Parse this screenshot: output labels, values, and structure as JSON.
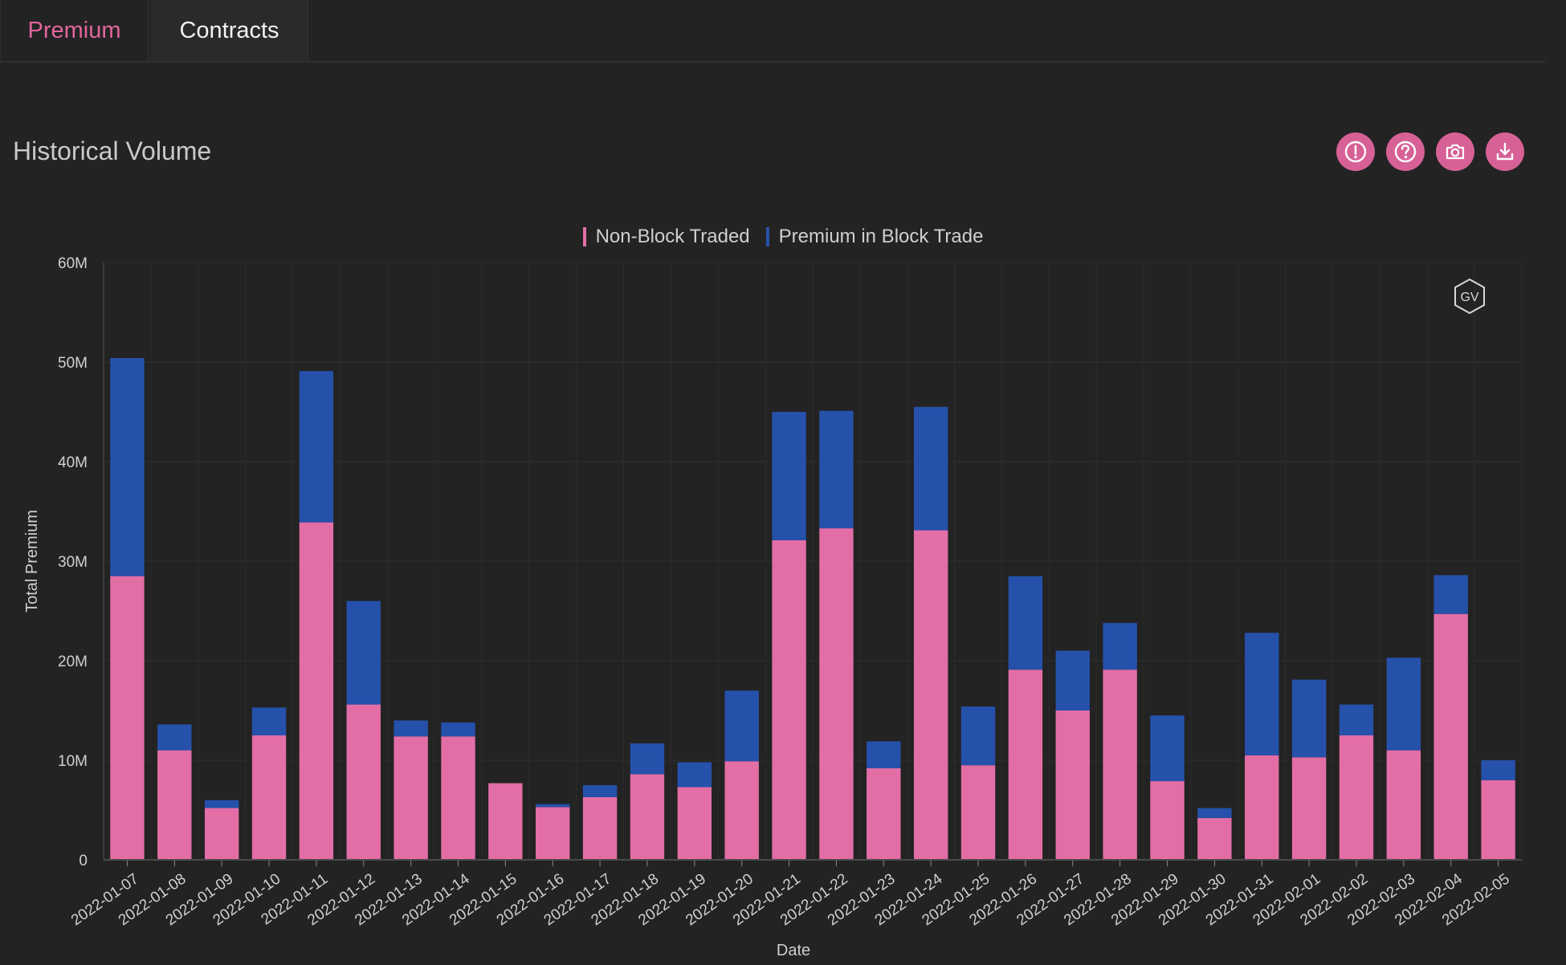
{
  "tabs": [
    {
      "label": "Premium",
      "active": true
    },
    {
      "label": "Contracts",
      "active": false
    }
  ],
  "section": {
    "title": "Historical Volume"
  },
  "actions": [
    {
      "name": "info-icon"
    },
    {
      "name": "help-icon"
    },
    {
      "name": "camera-icon"
    },
    {
      "name": "download-icon"
    }
  ],
  "watermark": "GV",
  "colors": {
    "background": "#232323",
    "accent": "#e2659e",
    "non_block": "#e36ea6",
    "block": "#2651ab",
    "grid": "#2f2f2f"
  },
  "chart_data": {
    "type": "bar",
    "stacked": true,
    "xlabel": "Date",
    "ylabel": "Total Premium",
    "ylim": [
      0,
      60000000
    ],
    "yticks": [
      0,
      10000000,
      20000000,
      30000000,
      40000000,
      50000000,
      60000000
    ],
    "ytick_labels": [
      "0",
      "10M",
      "20M",
      "30M",
      "40M",
      "50M",
      "60M"
    ],
    "legend_position": "top-center",
    "grid": true,
    "categories": [
      "2022-01-07",
      "2022-01-08",
      "2022-01-09",
      "2022-01-10",
      "2022-01-11",
      "2022-01-12",
      "2022-01-13",
      "2022-01-14",
      "2022-01-15",
      "2022-01-16",
      "2022-01-17",
      "2022-01-18",
      "2022-01-19",
      "2022-01-20",
      "2022-01-21",
      "2022-01-22",
      "2022-01-23",
      "2022-01-24",
      "2022-01-25",
      "2022-01-26",
      "2022-01-27",
      "2022-01-28",
      "2022-01-29",
      "2022-01-30",
      "2022-01-31",
      "2022-02-01",
      "2022-02-02",
      "2022-02-03",
      "2022-02-04",
      "2022-02-05"
    ],
    "series": [
      {
        "name": "Non-Block Traded",
        "color": "#e36ea6",
        "values": [
          28500000,
          11000000,
          5200000,
          12500000,
          33900000,
          15600000,
          12400000,
          12400000,
          7700000,
          5300000,
          6300000,
          8600000,
          7300000,
          9900000,
          32100000,
          33300000,
          9200000,
          33100000,
          9500000,
          19100000,
          15000000,
          19100000,
          7900000,
          4200000,
          10500000,
          10300000,
          12500000,
          11000000,
          24700000,
          8000000
        ]
      },
      {
        "name": "Premium in Block Trade",
        "color": "#2651ab",
        "values": [
          21900000,
          2600000,
          800000,
          2800000,
          15200000,
          10400000,
          1600000,
          1400000,
          0,
          300000,
          1200000,
          3100000,
          2500000,
          7100000,
          12900000,
          11800000,
          2700000,
          12400000,
          5900000,
          9400000,
          6000000,
          4700000,
          6600000,
          1000000,
          12300000,
          7800000,
          3100000,
          9300000,
          3900000,
          2000000
        ]
      }
    ]
  }
}
